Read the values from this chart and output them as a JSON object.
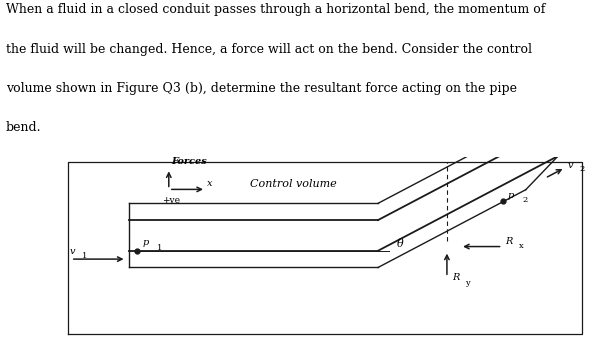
{
  "bg_color": "#ffffff",
  "line_color": "#1a1a1a",
  "text_block_lines": [
    "When a fluid in a closed conduit passes through a horizontal bend, the momentum of",
    "the fluid will be changed. Hence, a force will act on the bend. Consider the control",
    "volume shown in Figure Q3 (b), determine the resultant force acting on the pipe",
    "bend."
  ],
  "text_fontsize": 9.0,
  "label_forces": "Forces",
  "label_ve": "+ve",
  "label_x": "x",
  "label_control_volume": "Control volume",
  "label_v1": "v",
  "label_v1_sub": "1",
  "label_p1": "p",
  "label_p1_sub": "1",
  "label_v2": "v",
  "label_v2_sub": "2",
  "label_p2": "p",
  "label_p2_sub": "2",
  "label_theta": "θ",
  "label_Rx": "R",
  "label_Rx_sub": "x",
  "label_Ry": "R",
  "label_Ry_sub": "y"
}
